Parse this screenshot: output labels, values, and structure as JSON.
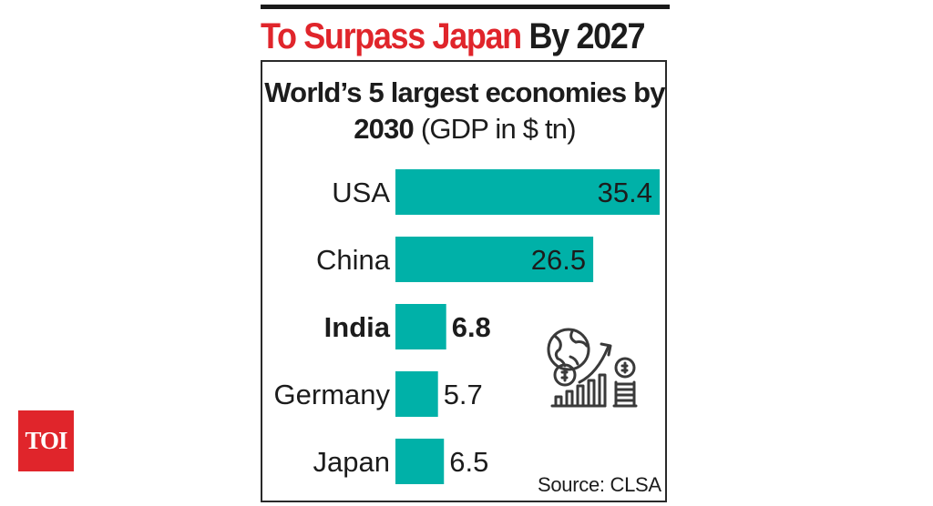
{
  "headline": {
    "red_part": "To Surpass Japan",
    "dark_part": "By 2027"
  },
  "chart_data": {
    "type": "bar",
    "orientation": "horizontal",
    "title_bold": "World’s 5 largest economies by 2030",
    "title_unit": "(GDP in $ tn)",
    "categories": [
      "USA",
      "China",
      "India",
      "Germany",
      "Japan"
    ],
    "values": [
      35.4,
      26.5,
      6.8,
      5.7,
      6.5
    ],
    "value_labels": [
      "35.4",
      "26.5",
      "6.8",
      "5.7",
      "6.5"
    ],
    "highlight": "India",
    "bar_color": "#00b1a8",
    "xlim": [
      0,
      35.4
    ],
    "xlabel": "",
    "ylabel": ""
  },
  "source": "Source: CLSA",
  "logo": {
    "text": "TOI",
    "color": "#e0252b"
  },
  "icon": "globe-growth-chart-icon"
}
